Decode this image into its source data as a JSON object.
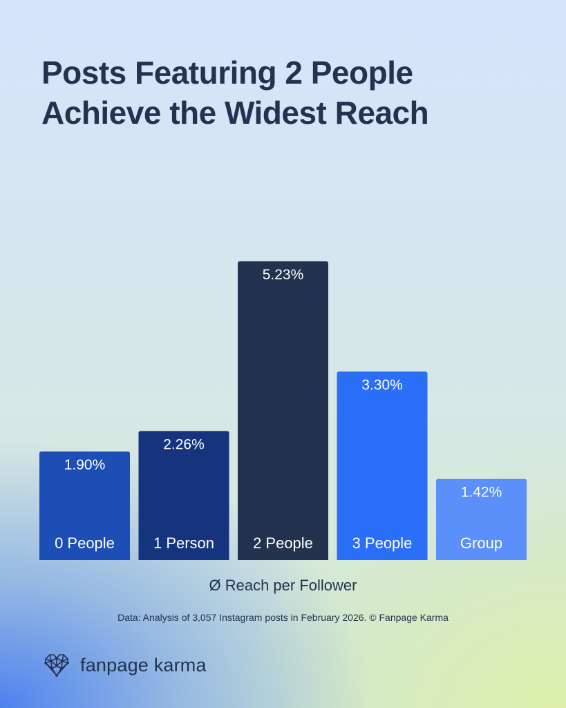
{
  "title": {
    "line1": "Posts Featuring 2 People",
    "line2": "Achieve the Widest Reach"
  },
  "chart_data": {
    "type": "bar",
    "categories": [
      "0 People",
      "1 Person",
      "2 People",
      "3 People",
      "Group"
    ],
    "values": [
      1.9,
      2.26,
      5.23,
      3.3,
      1.42
    ],
    "value_labels": [
      "1.90%",
      "2.26%",
      "5.23%",
      "3.30%",
      "1.42%"
    ],
    "colors": [
      "#1d4eb5",
      "#16347e",
      "#23324f",
      "#2b6ff8",
      "#5b8ff9"
    ],
    "xlabel": "Ø Reach per Follower",
    "ylabel": "",
    "ylim": [
      0,
      5.23
    ],
    "grid": false,
    "legend": "none"
  },
  "source": "Data: Analysis of 3,057 Instagram posts in February 2026. © Fanpage Karma",
  "brand": {
    "name": "fanpage karma",
    "icon": "heart-network-logo"
  }
}
